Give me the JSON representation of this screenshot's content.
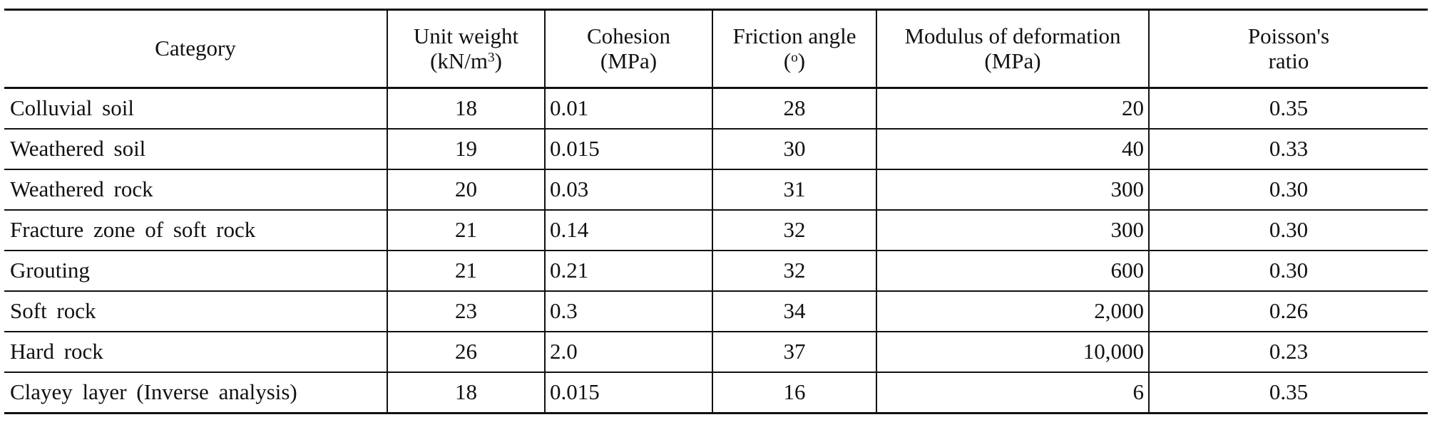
{
  "headers": {
    "category": "Category",
    "unit_weight": {
      "line1": "Unit weight",
      "line2_pre": "(kN/m",
      "line2_sup": "3",
      "line2_post": ")"
    },
    "cohesion": {
      "line1": "Cohesion",
      "line2": "(MPa)"
    },
    "friction_angle": {
      "line1": "Friction angle",
      "line2_pre": "(",
      "line2_sup": "o",
      "line2_post": ")"
    },
    "modulus": {
      "line1": "Modulus of deformation",
      "line2": "(MPa)"
    },
    "poisson": {
      "line1": "Poisson's",
      "line2": "ratio"
    }
  },
  "rows": [
    {
      "category": "Colluvial soil",
      "unit_weight": "18",
      "cohesion": "0.01",
      "friction_angle": "28",
      "modulus": "20",
      "poisson": "0.35"
    },
    {
      "category": "Weathered soil",
      "unit_weight": "19",
      "cohesion": "0.015",
      "friction_angle": "30",
      "modulus": "40",
      "poisson": "0.33"
    },
    {
      "category": "Weathered rock",
      "unit_weight": "20",
      "cohesion": "0.03",
      "friction_angle": "31",
      "modulus": "300",
      "poisson": "0.30"
    },
    {
      "category": "Fracture zone of soft rock",
      "unit_weight": "21",
      "cohesion": "0.14",
      "friction_angle": "32",
      "modulus": "300",
      "poisson": "0.30"
    },
    {
      "category": "Grouting",
      "unit_weight": "21",
      "cohesion": "0.21",
      "friction_angle": "32",
      "modulus": "600",
      "poisson": "0.30"
    },
    {
      "category": "Soft rock",
      "unit_weight": "23",
      "cohesion": "0.3",
      "friction_angle": "34",
      "modulus": "2,000",
      "poisson": "0.26"
    },
    {
      "category": "Hard rock",
      "unit_weight": "26",
      "cohesion": "2.0",
      "friction_angle": "37",
      "modulus": "10,000",
      "poisson": "0.23"
    },
    {
      "category": "Clayey layer (Inverse analysis)",
      "unit_weight": "18",
      "cohesion": "0.015",
      "friction_angle": "16",
      "modulus": "6",
      "poisson": "0.35"
    }
  ]
}
